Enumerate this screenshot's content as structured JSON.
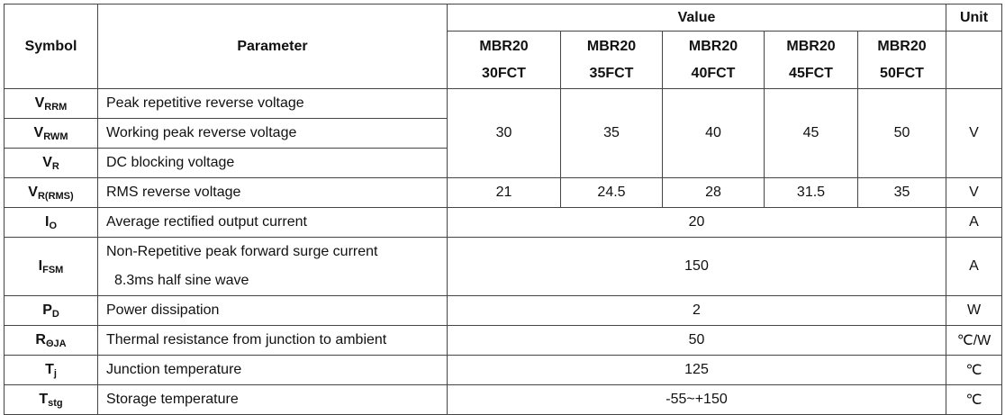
{
  "header": {
    "symbol": "Symbol",
    "parameter": "Parameter",
    "value": "Value",
    "unit": "Unit",
    "models": [
      [
        "MBR20",
        "30FCT"
      ],
      [
        "MBR20",
        "35FCT"
      ],
      [
        "MBR20",
        "40FCT"
      ],
      [
        "MBR20",
        "45FCT"
      ],
      [
        "MBR20",
        "50FCT"
      ]
    ]
  },
  "groups": [
    {
      "rows": [
        {
          "symbol": {
            "base": "V",
            "sub": "RRM"
          },
          "parameter": [
            "Peak repetitive reverse voltage"
          ]
        },
        {
          "symbol": {
            "base": "V",
            "sub": "RWM"
          },
          "parameter": [
            "Working peak reverse voltage"
          ]
        },
        {
          "symbol": {
            "base": "V",
            "sub": "R"
          },
          "parameter": [
            "DC blocking voltage"
          ]
        }
      ],
      "values": [
        "30",
        "35",
        "40",
        "45",
        "50"
      ],
      "unit": "V"
    },
    {
      "rows": [
        {
          "symbol": {
            "base": "V",
            "sub": "R(RMS)"
          },
          "parameter": [
            "RMS reverse voltage"
          ]
        }
      ],
      "values": [
        "21",
        "24.5",
        "28",
        "31.5",
        "35"
      ],
      "unit": "V"
    },
    {
      "rows": [
        {
          "symbol": {
            "base": "I",
            "sub": "O"
          },
          "parameter": [
            "Average rectified output current"
          ]
        }
      ],
      "values": [
        "20"
      ],
      "unit": "A"
    },
    {
      "rows": [
        {
          "symbol": {
            "base": "I",
            "sub": "FSM"
          },
          "parameter": [
            "Non-Repetitive peak forward surge current",
            "8.3ms half sine wave"
          ]
        }
      ],
      "values": [
        "150"
      ],
      "unit": "A"
    },
    {
      "rows": [
        {
          "symbol": {
            "base": "P",
            "sub": "D"
          },
          "parameter": [
            "Power dissipation"
          ]
        }
      ],
      "values": [
        "2"
      ],
      "unit": "W"
    },
    {
      "rows": [
        {
          "symbol": {
            "base": "R",
            "sub": "ΘJA"
          },
          "parameter": [
            "Thermal resistance from junction to ambient"
          ]
        }
      ],
      "values": [
        "50"
      ],
      "unit": "℃/W"
    },
    {
      "rows": [
        {
          "symbol": {
            "base": "T",
            "sub": "j"
          },
          "parameter": [
            "Junction temperature"
          ]
        }
      ],
      "values": [
        "125"
      ],
      "unit": "℃"
    },
    {
      "rows": [
        {
          "symbol": {
            "base": "T",
            "sub": "stg"
          },
          "parameter": [
            "Storage temperature"
          ]
        }
      ],
      "values": [
        "-55~+150"
      ],
      "unit": "℃"
    }
  ]
}
